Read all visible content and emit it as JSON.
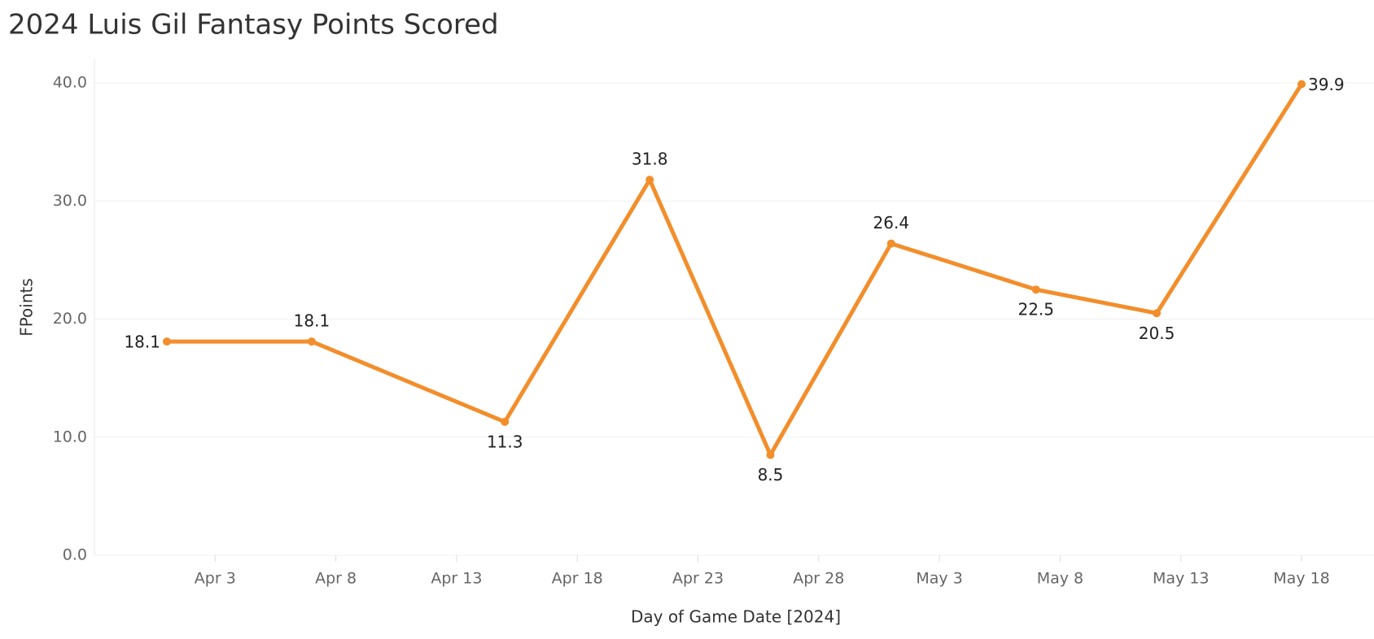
{
  "chart_data": {
    "type": "line",
    "title": "2024 Luis Gil Fantasy Points Scored",
    "x_label": "Day of Game Date [2024]",
    "y_label": "FPoints",
    "x": [
      "2024-04-01",
      "2024-04-07",
      "2024-04-15",
      "2024-04-21",
      "2024-04-26",
      "2024-05-01",
      "2024-05-07",
      "2024-05-12",
      "2024-05-18"
    ],
    "series": [
      {
        "name": "FPoints",
        "color": "#f28e2b",
        "values": [
          18.1,
          18.1,
          11.3,
          31.8,
          8.5,
          26.4,
          22.5,
          20.5,
          39.9
        ]
      }
    ],
    "xlim": [
      "2024-03-29",
      "2024-05-21"
    ],
    "xticks": [
      {
        "value": "2024-04-03",
        "label": "Apr 3"
      },
      {
        "value": "2024-04-08",
        "label": "Apr 8"
      },
      {
        "value": "2024-04-13",
        "label": "Apr 13"
      },
      {
        "value": "2024-04-18",
        "label": "Apr 18"
      },
      {
        "value": "2024-04-23",
        "label": "Apr 23"
      },
      {
        "value": "2024-04-28",
        "label": "Apr 28"
      },
      {
        "value": "2024-05-03",
        "label": "May 3"
      },
      {
        "value": "2024-05-08",
        "label": "May 8"
      },
      {
        "value": "2024-05-13",
        "label": "May 13"
      },
      {
        "value": "2024-05-18",
        "label": "May 18"
      }
    ],
    "ylim": [
      0,
      42
    ],
    "yticks": [
      {
        "value": 0,
        "label": "0.0"
      },
      {
        "value": 10,
        "label": "10.0"
      },
      {
        "value": 20,
        "label": "20.0"
      },
      {
        "value": 30,
        "label": "30.0"
      },
      {
        "value": 40,
        "label": "40.0"
      }
    ],
    "grid": true
  }
}
